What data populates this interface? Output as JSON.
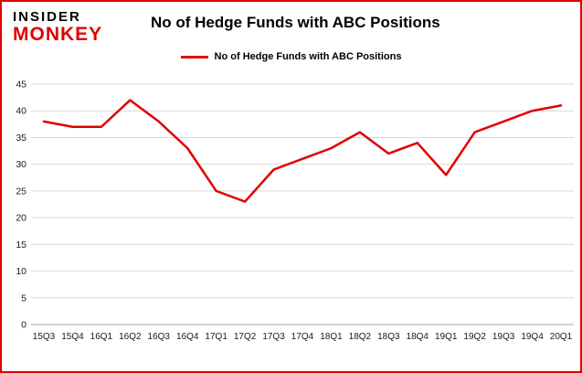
{
  "logo": {
    "line1": "INSIDER",
    "line2": "MONKEY"
  },
  "title": "No of Hedge Funds with ABC Positions",
  "legend": {
    "label": "No of Hedge Funds with ABC Positions"
  },
  "colors": {
    "line": "#e10000",
    "border": "#e10000",
    "grid": "#d9d9d9",
    "zero_axis": "#aaaaaa",
    "axis_text": "#1a1a1a"
  },
  "chart_data": {
    "type": "line",
    "title": "No of Hedge Funds with ABC Positions",
    "categories": [
      "15Q3",
      "15Q4",
      "16Q1",
      "16Q2",
      "16Q3",
      "16Q4",
      "17Q1",
      "17Q2",
      "17Q3",
      "17Q4",
      "18Q1",
      "18Q2",
      "18Q3",
      "18Q4",
      "19Q1",
      "19Q2",
      "19Q3",
      "19Q4",
      "20Q1"
    ],
    "series": [
      {
        "name": "No of Hedge Funds with ABC Positions",
        "values": [
          38,
          37,
          37,
          42,
          38,
          33,
          25,
          23,
          29,
          31,
          33,
          36,
          32,
          34,
          28,
          36,
          38,
          40,
          41
        ]
      }
    ],
    "xlabel": "",
    "ylabel": "",
    "ylim": [
      0,
      45
    ],
    "yticks": [
      0,
      5,
      10,
      15,
      20,
      25,
      30,
      35,
      40,
      45
    ],
    "grid": true,
    "legend_position": "top"
  }
}
